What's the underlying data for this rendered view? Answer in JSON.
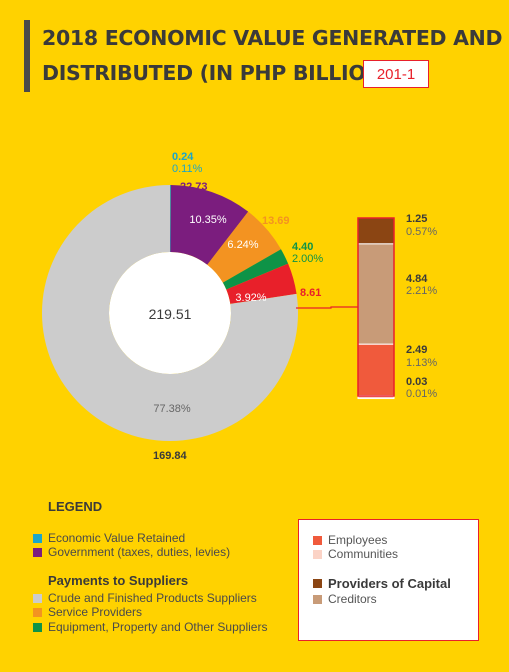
{
  "title": {
    "line1": "2018 ECONOMIC VALUE GENERATED AND",
    "line2": "DISTRIBUTED  (IN PHP BILLION)",
    "badge": "201-1"
  },
  "chart_data": {
    "type": "pie",
    "total_label": "219.51",
    "slices": [
      {
        "key": "retained",
        "value": "0.24",
        "percent": "0.11%",
        "pct": 0.11,
        "color": "#1BA6C8",
        "value_color": "#1BA6C8"
      },
      {
        "key": "government",
        "value": "22.73",
        "percent": "10.35%",
        "pct": 10.35,
        "color": "#7B1D7E",
        "value_color": "#7B1D7E"
      },
      {
        "key": "service",
        "value": "13.69",
        "percent": "6.24%",
        "pct": 6.24,
        "color": "#F39321",
        "value_color": "#F39321"
      },
      {
        "key": "equipment",
        "value": "4.40",
        "percent": "2.00%",
        "pct": 2.0,
        "color": "#0E9347",
        "value_color": "#0E9347"
      },
      {
        "key": "breakout",
        "value": "8.61",
        "percent": "3.92%",
        "pct": 3.92,
        "color": "#E8202A",
        "value_color": "#E8202A"
      },
      {
        "key": "crude",
        "value": "169.84",
        "percent": "77.38%",
        "pct": 77.38,
        "color": "#CCCCCC",
        "value_color": "#3a3a3a"
      }
    ],
    "breakdown": [
      {
        "key": "dividends",
        "value": "1.25",
        "percent": "0.57%",
        "pct": 0.57,
        "color": "#8B4513"
      },
      {
        "key": "creditors",
        "value": "4.84",
        "percent": "2.21%",
        "pct": 2.21,
        "color": "#C89B78"
      },
      {
        "key": "employees",
        "value": "2.49",
        "percent": "1.13%",
        "pct": 1.13,
        "color": "#F05A3C"
      },
      {
        "key": "communities",
        "value": "0.03",
        "percent": "0.01%",
        "pct": 0.01,
        "color": "#FBD3C6"
      }
    ]
  },
  "legend": {
    "title": "LEGEND",
    "items": [
      {
        "label": "Economic Value Retained",
        "color": "#1BA6C8"
      },
      {
        "label": "Government (taxes, duties, levies)",
        "color": "#7B1D7E"
      }
    ],
    "suppliers_heading": "Payments to Suppliers",
    "supplier_items": [
      {
        "label": "Crude and Finished Products Suppliers",
        "color": "#CCCCCC"
      },
      {
        "label": "Service Providers",
        "color": "#F39321"
      },
      {
        "label": "Equipment, Property and Other Suppliers",
        "color": "#0E9347"
      }
    ],
    "box_items": [
      {
        "label": "Employees",
        "color": "#F05A3C"
      },
      {
        "label": "Communities",
        "color": "#FBD3C6"
      }
    ],
    "capital_heading": "Providers of Capital",
    "capital_heading_color": "#8B4513",
    "capital_items": [
      {
        "label": "Creditors",
        "color": "#C89B78"
      }
    ]
  }
}
